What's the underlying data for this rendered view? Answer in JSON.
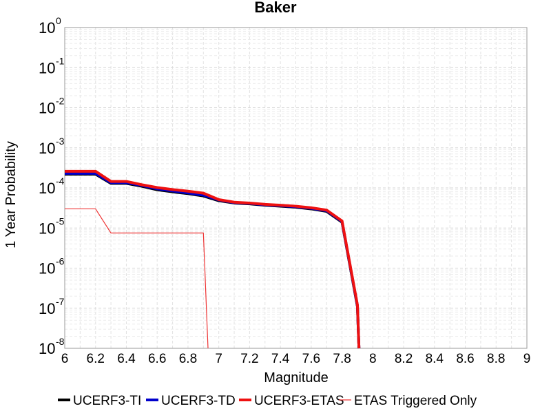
{
  "chart_data": {
    "type": "line",
    "title": "Baker",
    "xlabel": "Magnitude",
    "ylabel": "1 Year Probability",
    "xlim": [
      6,
      9
    ],
    "ylim": [
      1e-08,
      1
    ],
    "y_scale": "log",
    "grid": true,
    "legend_position": "bottom",
    "x_ticks": [
      "6",
      "6.2",
      "6.4",
      "6.6",
      "6.8",
      "7",
      "7.2",
      "7.4",
      "7.6",
      "7.8",
      "8",
      "8.2",
      "8.4",
      "8.6",
      "8.8",
      "9"
    ],
    "y_ticks": [
      {
        "base": "10",
        "exp": "0"
      },
      {
        "base": "10",
        "exp": "-1"
      },
      {
        "base": "10",
        "exp": "-2"
      },
      {
        "base": "10",
        "exp": "-3"
      },
      {
        "base": "10",
        "exp": "-4"
      },
      {
        "base": "10",
        "exp": "-5"
      },
      {
        "base": "10",
        "exp": "-6"
      },
      {
        "base": "10",
        "exp": "-7"
      },
      {
        "base": "10",
        "exp": "-8"
      }
    ],
    "series": [
      {
        "name": "UCERF3-TI",
        "color": "#000000",
        "width": 4,
        "x": [
          6.0,
          6.2,
          6.3,
          6.4,
          6.5,
          6.6,
          6.7,
          6.8,
          6.9,
          7.0,
          7.1,
          7.2,
          7.3,
          7.4,
          7.5,
          7.6,
          7.7,
          7.8,
          7.9,
          7.91
        ],
        "y": [
          0.00022,
          0.00022,
          0.00013,
          0.00013,
          0.00011,
          9e-05,
          8e-05,
          7.2e-05,
          6.3e-05,
          4.8e-05,
          4.2e-05,
          4e-05,
          3.7e-05,
          3.5e-05,
          3.3e-05,
          3e-05,
          2.6e-05,
          1.4e-05,
          1.1e-07,
          1e-08
        ]
      },
      {
        "name": "UCERF3-TD",
        "color": "#0000cc",
        "width": 4,
        "x": [
          6.0,
          6.2,
          6.3,
          6.4,
          6.5,
          6.6,
          6.7,
          6.8,
          6.9,
          7.0,
          7.1,
          7.2,
          7.3,
          7.4,
          7.5,
          7.6,
          7.7,
          7.8,
          7.9,
          7.91
        ],
        "y": [
          0.00023,
          0.00023,
          0.000135,
          0.000135,
          0.000115,
          9.5e-05,
          8.4e-05,
          7.5e-05,
          6.6e-05,
          5e-05,
          4.3e-05,
          4.1e-05,
          3.8e-05,
          3.6e-05,
          3.4e-05,
          3.1e-05,
          2.7e-05,
          1.45e-05,
          1.15e-07,
          1e-08
        ]
      },
      {
        "name": "UCERF3-ETAS",
        "color": "#ee1111",
        "width": 4,
        "x": [
          6.0,
          6.2,
          6.3,
          6.4,
          6.5,
          6.6,
          6.7,
          6.8,
          6.9,
          7.0,
          7.1,
          7.2,
          7.3,
          7.4,
          7.5,
          7.6,
          7.7,
          7.8,
          7.9,
          7.91
        ],
        "y": [
          0.00026,
          0.00026,
          0.000145,
          0.000145,
          0.00012,
          0.000102,
          9.1e-05,
          8.3e-05,
          7.4e-05,
          5.1e-05,
          4.4e-05,
          4.2e-05,
          3.9e-05,
          3.7e-05,
          3.5e-05,
          3.2e-05,
          2.8e-05,
          1.5e-05,
          1.2e-07,
          1e-08
        ]
      },
      {
        "name": "ETAS Triggered Only",
        "color": "#ee3333",
        "width": 1.2,
        "x": [
          6.0,
          6.2,
          6.3,
          6.4,
          6.5,
          6.6,
          6.7,
          6.8,
          6.9,
          6.93
        ],
        "y": [
          3e-05,
          3e-05,
          7.5e-06,
          7.5e-06,
          7.5e-06,
          7.5e-06,
          7.5e-06,
          7.5e-06,
          7.5e-06,
          1e-08
        ]
      }
    ]
  }
}
